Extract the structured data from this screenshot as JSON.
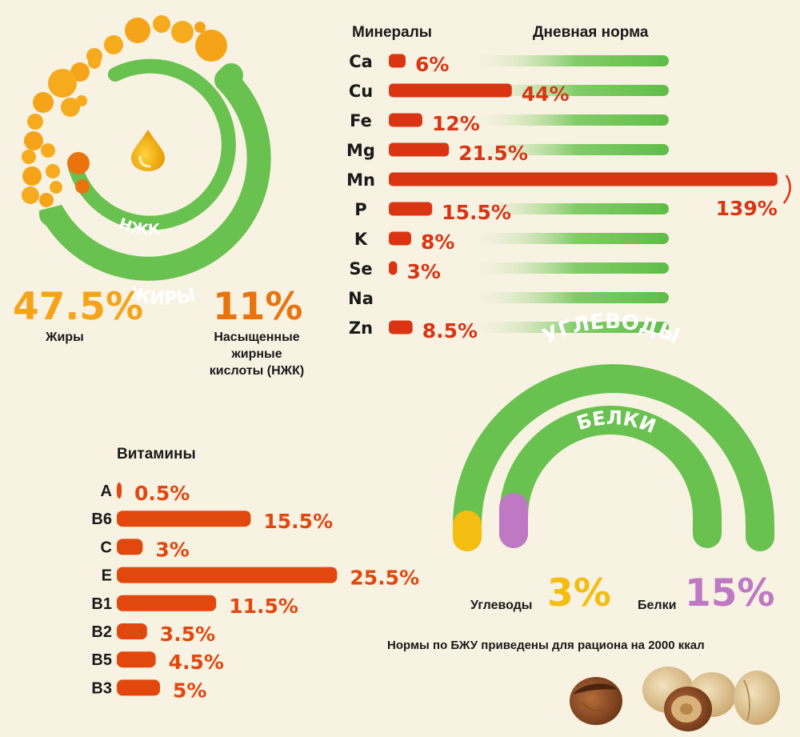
{
  "colors": {
    "green": "#69c24f",
    "red": "#d93513",
    "orange": "#e2470e",
    "amber": "#f5a41a",
    "yellow": "#f4bd12",
    "purple": "#bf78c4",
    "background": "#f8f2e2"
  },
  "icons": [
    "oil-drop-icon",
    "hazelnut-icon"
  ],
  "fats": {
    "outer_arc_label": "ЖИРЫ",
    "inner_arc_label": "НЖК",
    "fats_value": "47.5%",
    "fats_label": "Жиры",
    "sfa_value": "11%",
    "sfa_label_lines": [
      "Насыщенные",
      "жирные",
      "кислоты (НЖК)"
    ]
  },
  "macros": {
    "outer_arc_label": "УГЛЕВОДЫ",
    "inner_arc_label": "БЕЛКИ",
    "carbs_label": "Углеводы",
    "carbs_value": "3%",
    "protein_label": "Белки",
    "protein_value": "15%",
    "note": "Нормы по БЖУ приведены для рациона на 2000 ккал"
  },
  "chart_data": [
    {
      "type": "bar",
      "title": "Минералы",
      "reference_label": "Дневная норма",
      "unit": "%",
      "categories": [
        "Ca",
        "Cu",
        "Fe",
        "Mg",
        "Mn",
        "P",
        "K",
        "Se",
        "Na",
        "Zn"
      ],
      "values": [
        6,
        44,
        12,
        21.5,
        139,
        15.5,
        8,
        3,
        null,
        8.5
      ],
      "value_labels": [
        "6%",
        "44%",
        "12%",
        "21.5%",
        "139%",
        "15.5%",
        "8%",
        "3%",
        "",
        "8.5%"
      ],
      "reference_value": 100
    },
    {
      "type": "bar",
      "title": "Витамины",
      "unit": "%",
      "categories": [
        "A",
        "B6",
        "C",
        "E",
        "B1",
        "B2",
        "B5",
        "B3"
      ],
      "values": [
        0.5,
        15.5,
        3,
        25.5,
        11.5,
        3.5,
        4.5,
        5
      ],
      "value_labels": [
        "0.5%",
        "15.5%",
        "3%",
        "25.5%",
        "11.5%",
        "3.5%",
        "4.5%",
        "5%"
      ]
    },
    {
      "type": "pie",
      "title": "",
      "categories": [
        "Жиры",
        "Насыщенные жирные кислоты (НЖК)"
      ],
      "values": [
        47.5,
        11
      ],
      "unit": "%"
    },
    {
      "type": "pie",
      "title": "",
      "categories": [
        "Углеводы",
        "Белки"
      ],
      "values": [
        3,
        15
      ],
      "unit": "%"
    }
  ]
}
